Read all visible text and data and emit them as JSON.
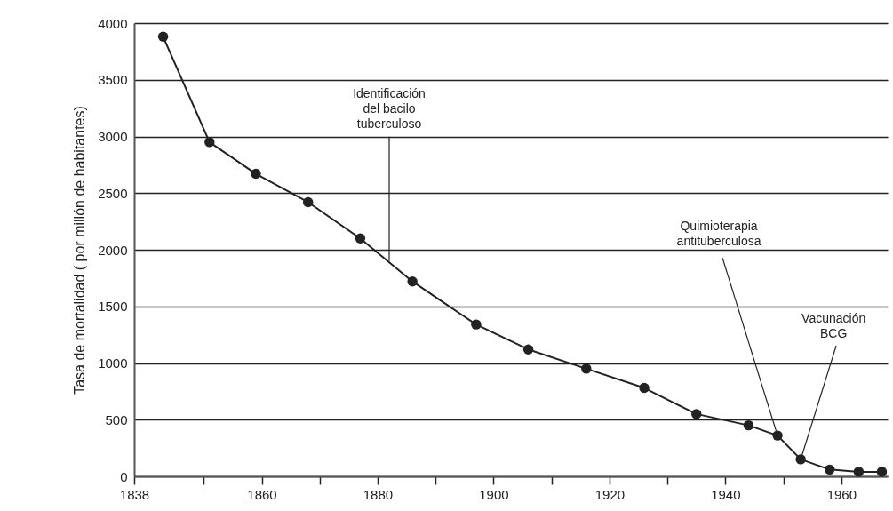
{
  "chart_data": {
    "type": "line",
    "ylabel": "Tasa de mortalidad ( por millón de habitantes)",
    "x": [
      1843,
      1851,
      1859,
      1868,
      1877,
      1886,
      1897,
      1906,
      1916,
      1926,
      1935,
      1944,
      1949,
      1953,
      1958,
      1963,
      1967
    ],
    "series": [
      {
        "color": "#222222",
        "values": [
          3880,
          2950,
          2670,
          2420,
          2100,
          1720,
          1340,
          1120,
          950,
          780,
          550,
          450,
          360,
          150,
          60,
          40,
          40
        ]
      }
    ],
    "marker": "circle",
    "xlim": [
      1838,
      1968
    ],
    "xticks": [
      1838,
      {
        "value": 1850,
        "label": null
      },
      1860,
      {
        "value": 1870,
        "label": null
      },
      1880,
      {
        "value": 1890,
        "label": null
      },
      1900,
      {
        "value": 1910,
        "label": null
      },
      1920,
      {
        "value": 1930,
        "label": null
      },
      1940,
      {
        "value": 1950,
        "label": null
      },
      1960
    ],
    "ylim": [
      0,
      4000
    ],
    "yticks": [
      0,
      500,
      1000,
      1500,
      2000,
      2500,
      3000,
      3500,
      4000
    ],
    "grid": "y",
    "annotations": [
      {
        "text": "Identificación\ndel bacilo\ntuberculoso",
        "x": 1882,
        "y": 1900
      },
      {
        "text": "Quimioterapia\nantituberculosa",
        "x": 1949,
        "y": 360
      },
      {
        "text": "Vacunación\nBCG",
        "x": 1953,
        "y": 150
      }
    ]
  }
}
